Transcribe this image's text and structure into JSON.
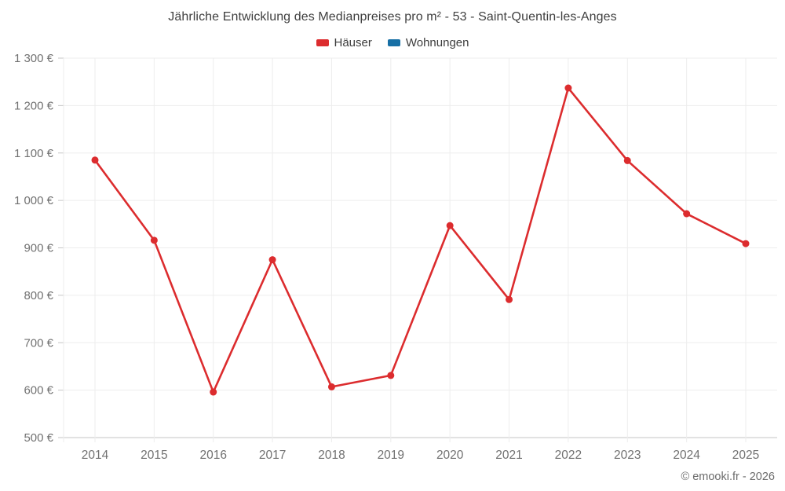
{
  "title": "Jährliche Entwicklung des Medianpreises pro m² - 53 - Saint-Quentin-les-Anges",
  "legend": {
    "items": [
      {
        "label": "Häuser",
        "color": "#dc2c2e"
      },
      {
        "label": "Wohnungen",
        "color": "#176fa5"
      }
    ]
  },
  "footer": {
    "credit": "© emooki.fr - 2026"
  },
  "colors": {
    "series_hauser": "#dc2c2e",
    "series_wohnungen": "#176fa5",
    "gridline": "#ededed",
    "axis_line": "#c6c6c6",
    "tick_label": "#717171",
    "title_text": "#3f3f3f"
  },
  "chart_data": {
    "type": "line",
    "title": "Jährliche Entwicklung des Medianpreises pro m² - 53 - Saint-Quentin-les-Anges",
    "categories": [
      "2014",
      "2015",
      "2016",
      "2017",
      "2018",
      "2019",
      "2020",
      "2021",
      "2022",
      "2023",
      "2024",
      "2025"
    ],
    "series": [
      {
        "name": "Häuser",
        "color": "#dc2c2e",
        "values": [
          1085,
          916,
          596,
          875,
          607,
          631,
          947,
          791,
          1237,
          1084,
          972,
          909
        ]
      },
      {
        "name": "Wohnungen",
        "color": "#176fa5",
        "values": []
      }
    ],
    "xlabel": "",
    "ylabel": "",
    "ylim": [
      500,
      1300
    ],
    "y_tick_step": 100,
    "y_tick_suffix": " €",
    "grid": true,
    "legend_position": "top",
    "marker": "circle"
  }
}
